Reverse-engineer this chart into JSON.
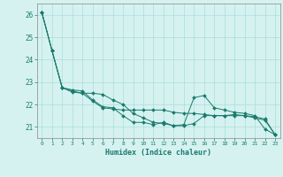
{
  "title": "",
  "xlabel": "Humidex (Indice chaleur)",
  "ylabel": "",
  "bg_color": "#d5f2f0",
  "grid_color": "#aaddda",
  "line_color": "#1a7a6e",
  "xlim": [
    -0.5,
    23.5
  ],
  "ylim": [
    20.5,
    26.5
  ],
  "yticks": [
    21,
    22,
    23,
    24,
    25,
    26
  ],
  "xticks": [
    0,
    1,
    2,
    3,
    4,
    5,
    6,
    7,
    8,
    9,
    10,
    11,
    12,
    13,
    14,
    15,
    16,
    17,
    18,
    19,
    20,
    21,
    22,
    23
  ],
  "series": [
    [
      26.1,
      24.4,
      22.75,
      22.65,
      22.6,
      22.2,
      21.9,
      21.85,
      21.5,
      21.2,
      21.2,
      21.1,
      21.2,
      21.05,
      21.1,
      22.3,
      22.4,
      21.85,
      21.75,
      21.65,
      21.6,
      21.5,
      20.9,
      20.65
    ],
    [
      26.1,
      24.4,
      22.75,
      22.6,
      22.5,
      22.15,
      21.85,
      21.8,
      21.75,
      21.75,
      21.75,
      21.75,
      21.75,
      21.65,
      21.6,
      21.6,
      21.55,
      21.5,
      21.5,
      21.5,
      21.5,
      21.45,
      21.35,
      20.65
    ],
    [
      26.1,
      24.4,
      22.75,
      22.55,
      22.5,
      22.5,
      22.45,
      22.2,
      22.0,
      21.6,
      21.4,
      21.2,
      21.15,
      21.05,
      21.05,
      21.15,
      21.5,
      21.5,
      21.5,
      21.55,
      21.5,
      21.4,
      21.3,
      20.65
    ]
  ]
}
